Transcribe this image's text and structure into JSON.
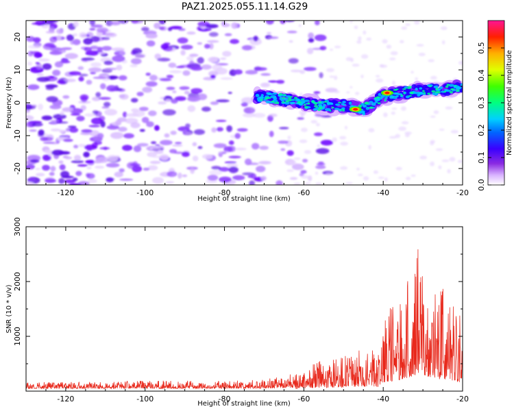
{
  "title": "PAZ1.2025.055.11.14.G29",
  "chart_data": [
    {
      "type": "heatmap",
      "title": "PAZ1.2025.055.11.14.G29",
      "xlabel": "Height of straight line (km)",
      "ylabel": "Frequency (Hz)",
      "xlim": [
        -130,
        -20
      ],
      "ylim": [
        -25,
        25
      ],
      "xticks": [
        "-120",
        "-100",
        "-80",
        "-60",
        "-40",
        "-20"
      ],
      "yticks": [
        "-20",
        "-10",
        "0",
        "10",
        "20"
      ],
      "colorbar": {
        "label": "Normalized spectral amplitude",
        "range": [
          0,
          0.6
        ],
        "ticks": [
          "0.0",
          "0.1",
          "0.2",
          "0.3",
          "0.4",
          "0.5"
        ],
        "colormap": "rainbow (white-violet-blue-cyan-green-yellow-red-pink)"
      },
      "signal_ridge": [
        {
          "x": -72,
          "y": 2
        },
        {
          "x": -65,
          "y": 1
        },
        {
          "x": -60,
          "y": 0
        },
        {
          "x": -55,
          "y": -1
        },
        {
          "x": -50,
          "y": -1
        },
        {
          "x": -45,
          "y": -2
        },
        {
          "x": -40,
          "y": 2
        },
        {
          "x": -35,
          "y": 3
        },
        {
          "x": -30,
          "y": 4
        },
        {
          "x": -25,
          "y": 4
        },
        {
          "x": -20,
          "y": 5
        }
      ],
      "peaks": [
        {
          "x": -47,
          "y": -2,
          "amplitude": 0.55
        },
        {
          "x": -39,
          "y": 3,
          "amplitude": 0.5
        }
      ],
      "noise_region_x": [
        -130,
        -65
      ]
    },
    {
      "type": "line",
      "xlabel": "Height of straight line (km)",
      "ylabel": "SNR (10 * v/v)",
      "xlim": [
        -130,
        -20
      ],
      "ylim": [
        0,
        3000
      ],
      "xticks": [
        "-120",
        "-100",
        "-80",
        "-60",
        "-40",
        "-20"
      ],
      "yticks": [
        "1000",
        "2000",
        "3000"
      ],
      "color": "#e8291c",
      "series": [
        {
          "x": [
            -130,
            -120,
            -110,
            -100,
            -90,
            -80,
            -70,
            -65,
            -62,
            -60,
            -58,
            -55,
            -52,
            -50,
            -48,
            -46,
            -44,
            -42,
            -41,
            -40,
            -38,
            -36,
            -34,
            -32,
            -31,
            -30,
            -28,
            -26,
            -24,
            -22,
            -20
          ],
          "values": [
            130,
            130,
            130,
            150,
            150,
            140,
            180,
            220,
            300,
            400,
            500,
            520,
            560,
            600,
            640,
            700,
            720,
            680,
            600,
            1300,
            1500,
            1700,
            2000,
            2300,
            2700,
            2500,
            2100,
            1800,
            1700,
            1500,
            1300
          ]
        }
      ]
    }
  ]
}
